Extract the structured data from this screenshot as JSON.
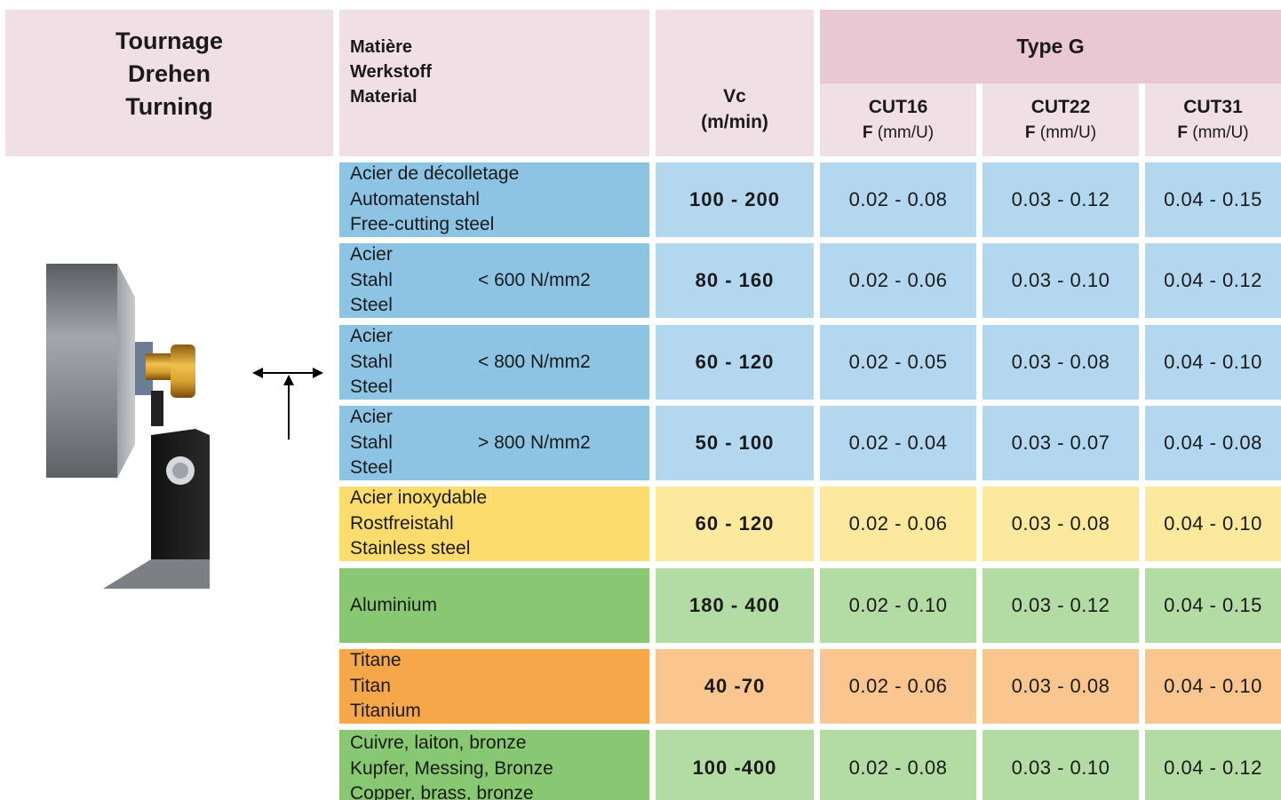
{
  "title": [
    "Tournage",
    "Drehen",
    "Turning"
  ],
  "header": {
    "material": [
      "Matière",
      "Werkstoff",
      "Material"
    ],
    "vc": [
      "Vc",
      "(m/min)"
    ],
    "type": "Type G",
    "cuts": [
      {
        "name": "CUT16",
        "f": "F",
        "unit": "(mm/U)"
      },
      {
        "name": "CUT22",
        "f": "F",
        "unit": "(mm/U)"
      },
      {
        "name": "CUT31",
        "f": "F",
        "unit": "(mm/U)"
      }
    ]
  },
  "rows": [
    {
      "color": "blue",
      "lines": [
        "Acier de décolletage",
        "Automatenstahl",
        "Free-cutting steel"
      ],
      "grade": "",
      "vc": "100 - 200",
      "f": [
        "0.02 - 0.08",
        "0.03 - 0.12",
        "0.04 - 0.15"
      ]
    },
    {
      "color": "blue",
      "lines": [
        "Acier",
        "Stahl",
        "Steel"
      ],
      "grade": "< 600 N/mm2",
      "vc": "80 - 160",
      "f": [
        "0.02 - 0.06",
        "0.03 - 0.10",
        "0.04 - 0.12"
      ]
    },
    {
      "color": "blue",
      "lines": [
        "Acier",
        "Stahl",
        "Steel"
      ],
      "grade": "< 800 N/mm2",
      "vc": "60 - 120",
      "f": [
        "0.02 - 0.05",
        "0.03 - 0.08",
        "0.04 - 0.10"
      ]
    },
    {
      "color": "blue",
      "lines": [
        "Acier",
        "Stahl",
        "Steel"
      ],
      "grade": ">  800 N/mm2",
      "vc": "50 - 100",
      "f": [
        "0.02 - 0.04",
        "0.03 - 0.07",
        "0.04 - 0.08"
      ]
    },
    {
      "color": "yel",
      "lines": [
        "Acier inoxydable",
        "Rostfreistahl",
        "Stainless steel"
      ],
      "grade": "",
      "vc": "60 - 120",
      "f": [
        "0.02 - 0.06",
        "0.03 - 0.08",
        "0.04 - 0.10"
      ]
    },
    {
      "color": "grn",
      "lines": [
        "Aluminium"
      ],
      "grade": "",
      "vc": "180 - 400",
      "f": [
        "0.02 - 0.10",
        "0.03 - 0.12",
        "0.04 - 0.15"
      ]
    },
    {
      "color": "org",
      "lines": [
        "Titane",
        "Titan",
        "Titanium"
      ],
      "grade": "",
      "vc": "40 -70",
      "f": [
        "0.02 - 0.06",
        "0.03 - 0.08",
        "0.04 - 0.10"
      ]
    },
    {
      "color": "grn",
      "lines": [
        "Cuivre, laiton, bronze",
        "Kupfer, Messing, Bronze",
        "Copper, brass, bronze"
      ],
      "grade": "",
      "vc": "100 -400",
      "f": [
        "0.02 - 0.08",
        "0.03 - 0.10",
        "0.04 - 0.12"
      ]
    }
  ],
  "colors": {
    "header": "#f0e0e6",
    "header_dark": "#e9c8d4",
    "blue": "#8dc3e3",
    "blue_light": "#b2d7ee",
    "yellow": "#fbdc6c",
    "yellow_light": "#fde99e",
    "green": "#88c873",
    "green_light": "#b3dba4",
    "orange": "#f6a74a",
    "orange_light": "#fac58e"
  },
  "icons": {
    "illustration": "turning-tool-illustration",
    "feed": "feed-direction-arrows-icon"
  }
}
